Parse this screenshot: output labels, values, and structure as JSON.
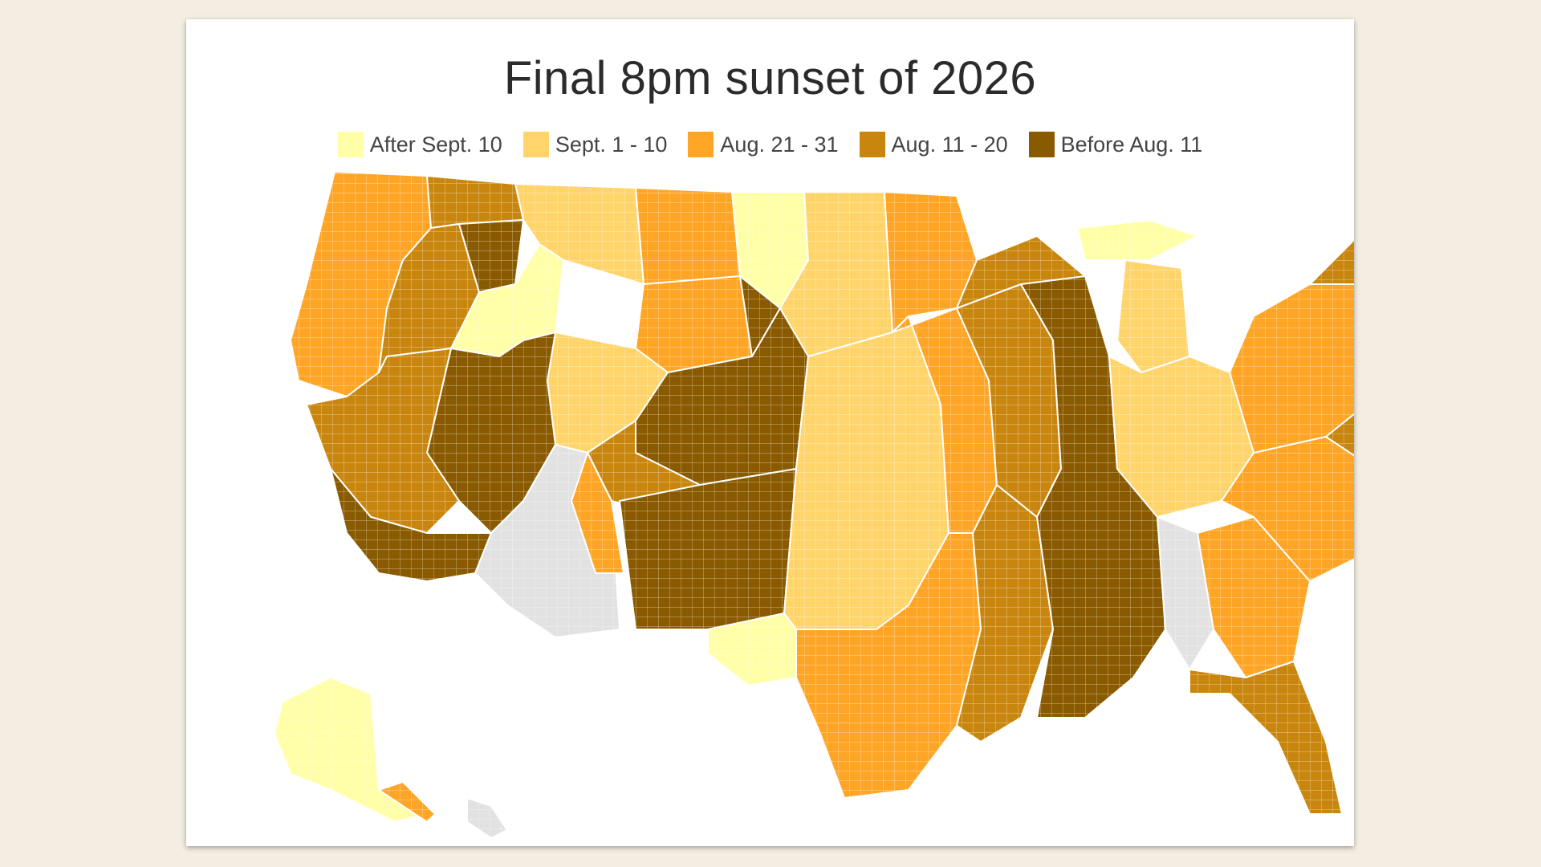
{
  "title": "Final 8pm sunset of 2026",
  "legend": [
    {
      "label": "After Sept. 10",
      "color": "#ffffa8"
    },
    {
      "label": "Sept. 1 - 10",
      "color": "#ffd46b"
    },
    {
      "label": "Aug. 21 - 31",
      "color": "#ffa526"
    },
    {
      "label": "Aug. 11 - 20",
      "color": "#c9860f"
    },
    {
      "label": "Before Aug. 11",
      "color": "#8a5a00"
    }
  ],
  "no_data_color": "#e2e2e2",
  "border_color": "#ffffff"
}
